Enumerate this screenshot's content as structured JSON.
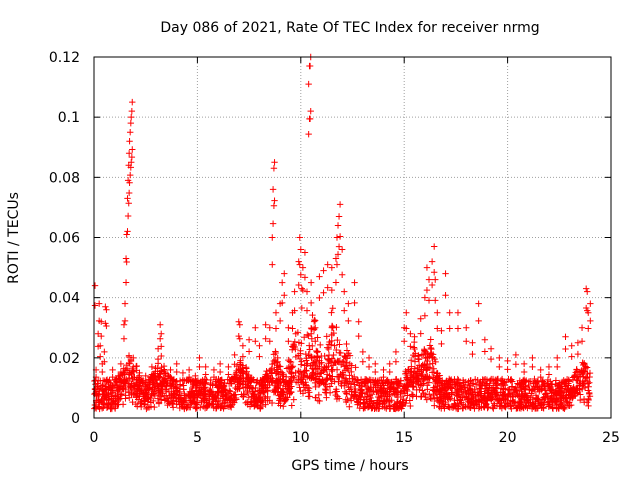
{
  "chart_data": {
    "type": "scatter",
    "title": "Day 086 of 2021, Rate Of TEC Index for receiver nrmg",
    "xlabel": "GPS time / hours",
    "ylabel": "ROTI / TECUs",
    "xlim": [
      0,
      25
    ],
    "ylim": [
      0,
      0.12
    ],
    "xticks": [
      0,
      5,
      10,
      15,
      20,
      25
    ],
    "xtick_labels": [
      "0",
      "5",
      "10",
      "15",
      "20",
      "25"
    ],
    "yticks": [
      0,
      0.02,
      0.04,
      0.06,
      0.08,
      0.1,
      0.12
    ],
    "ytick_labels": [
      "0",
      "0.02",
      "0.04",
      "0.06",
      "0.08",
      "0.1",
      "0.12"
    ],
    "grid": true,
    "marker": "+",
    "color": "#ff0000",
    "series": [
      {
        "name": "ROTI",
        "points": [
          [
            0.05,
            0.044
          ],
          [
            0.1,
            0.016
          ],
          [
            0.2,
            0.028
          ],
          [
            0.25,
            0.038
          ],
          [
            0.3,
            0.024
          ],
          [
            0.35,
            0.032
          ],
          [
            0.4,
            0.018
          ],
          [
            0.5,
            0.022
          ],
          [
            0.55,
            0.037
          ],
          [
            0.6,
            0.036
          ],
          [
            0.7,
            0.012
          ],
          [
            0.9,
            0.016
          ],
          [
            1.1,
            0.013
          ],
          [
            1.3,
            0.018
          ],
          [
            1.45,
            0.031
          ],
          [
            1.5,
            0.038
          ],
          [
            1.55,
            0.053
          ],
          [
            1.58,
            0.061
          ],
          [
            1.62,
            0.073
          ],
          [
            1.65,
            0.079
          ],
          [
            1.68,
            0.084
          ],
          [
            1.7,
            0.088
          ],
          [
            1.72,
            0.092
          ],
          [
            1.75,
            0.095
          ],
          [
            1.78,
            0.098
          ],
          [
            1.8,
            0.1
          ],
          [
            1.83,
            0.102
          ],
          [
            1.85,
            0.105
          ],
          [
            1.9,
            0.02
          ],
          [
            2.2,
            0.015
          ],
          [
            2.5,
            0.014
          ],
          [
            2.8,
            0.017
          ],
          [
            3.1,
            0.023
          ],
          [
            3.2,
            0.031
          ],
          [
            3.25,
            0.028
          ],
          [
            3.4,
            0.015
          ],
          [
            3.7,
            0.016
          ],
          [
            4.0,
            0.018
          ],
          [
            4.3,
            0.015
          ],
          [
            4.6,
            0.016
          ],
          [
            4.9,
            0.014
          ],
          [
            5.1,
            0.02
          ],
          [
            5.4,
            0.017
          ],
          [
            5.8,
            0.016
          ],
          [
            6.1,
            0.018
          ],
          [
            6.5,
            0.017
          ],
          [
            6.8,
            0.021
          ],
          [
            7.0,
            0.032
          ],
          [
            7.05,
            0.031
          ],
          [
            7.2,
            0.024
          ],
          [
            7.5,
            0.026
          ],
          [
            7.8,
            0.03
          ],
          [
            8.0,
            0.024
          ],
          [
            8.3,
            0.031
          ],
          [
            8.5,
            0.03
          ],
          [
            8.62,
            0.06
          ],
          [
            8.66,
            0.076
          ],
          [
            8.7,
            0.083
          ],
          [
            8.73,
            0.085
          ],
          [
            8.8,
            0.035
          ],
          [
            9.0,
            0.038
          ],
          [
            9.1,
            0.045
          ],
          [
            9.2,
            0.048
          ],
          [
            9.4,
            0.03
          ],
          [
            9.6,
            0.035
          ],
          [
            9.7,
            0.042
          ],
          [
            9.9,
            0.052
          ],
          [
            9.95,
            0.06
          ],
          [
            10.0,
            0.056
          ],
          [
            10.05,
            0.043
          ],
          [
            10.1,
            0.05
          ],
          [
            10.2,
            0.055
          ],
          [
            10.3,
            0.042
          ],
          [
            10.38,
            0.111
          ],
          [
            10.42,
            0.117
          ],
          [
            10.45,
            0.117
          ],
          [
            10.48,
            0.12
          ],
          [
            10.5,
            0.045
          ],
          [
            10.7,
            0.03
          ],
          [
            10.9,
            0.047
          ],
          [
            11.1,
            0.049
          ],
          [
            11.3,
            0.051
          ],
          [
            11.5,
            0.05
          ],
          [
            11.7,
            0.053
          ],
          [
            11.75,
            0.06
          ],
          [
            11.8,
            0.064
          ],
          [
            11.85,
            0.067
          ],
          [
            11.9,
            0.071
          ],
          [
            12.0,
            0.056
          ],
          [
            12.1,
            0.042
          ],
          [
            12.3,
            0.038
          ],
          [
            12.6,
            0.045
          ],
          [
            12.8,
            0.032
          ],
          [
            13.0,
            0.022
          ],
          [
            13.3,
            0.02
          ],
          [
            13.6,
            0.018
          ],
          [
            14.0,
            0.016
          ],
          [
            14.3,
            0.018
          ],
          [
            14.6,
            0.022
          ],
          [
            15.0,
            0.03
          ],
          [
            15.1,
            0.035
          ],
          [
            15.3,
            0.028
          ],
          [
            15.5,
            0.027
          ],
          [
            15.8,
            0.033
          ],
          [
            16.0,
            0.04
          ],
          [
            16.1,
            0.05
          ],
          [
            16.2,
            0.046
          ],
          [
            16.35,
            0.052
          ],
          [
            16.45,
            0.057
          ],
          [
            16.5,
            0.046
          ],
          [
            16.6,
            0.035
          ],
          [
            16.8,
            0.029
          ],
          [
            17.0,
            0.048
          ],
          [
            17.2,
            0.035
          ],
          [
            17.6,
            0.035
          ],
          [
            18.0,
            0.03
          ],
          [
            18.3,
            0.025
          ],
          [
            18.6,
            0.038
          ],
          [
            18.9,
            0.026
          ],
          [
            19.2,
            0.023
          ],
          [
            19.6,
            0.02
          ],
          [
            20.0,
            0.019
          ],
          [
            20.4,
            0.021
          ],
          [
            20.8,
            0.018
          ],
          [
            21.2,
            0.02
          ],
          [
            21.6,
            0.016
          ],
          [
            22.0,
            0.017
          ],
          [
            22.4,
            0.02
          ],
          [
            22.8,
            0.027
          ],
          [
            23.1,
            0.024
          ],
          [
            23.4,
            0.025
          ],
          [
            23.6,
            0.03
          ],
          [
            23.7,
            0.018
          ],
          [
            23.8,
            0.043
          ],
          [
            23.85,
            0.042
          ],
          [
            23.9,
            0.035
          ],
          [
            24.0,
            0.038
          ]
        ]
      }
    ]
  }
}
